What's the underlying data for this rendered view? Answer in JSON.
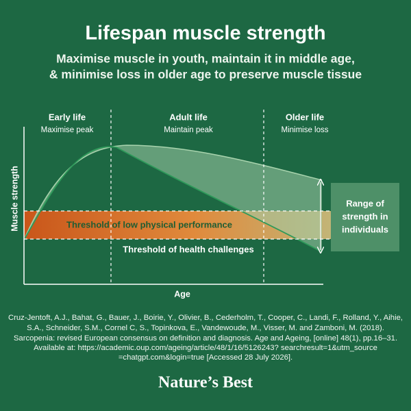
{
  "header": {
    "title": "Lifespan muscle strength",
    "subtitle_lines": [
      "Maximise muscle in youth, maintain it in middle age,",
      "& minimise loss in older age to preserve muscle tissue"
    ]
  },
  "diagram": {
    "phases": [
      {
        "label": "Early life",
        "note": "Maximise peak"
      },
      {
        "label": "Adult life",
        "note": "Maintain peak"
      },
      {
        "label": "Older life",
        "note": "Minimise loss"
      }
    ],
    "y_axis_label": "Muscle strength",
    "x_axis_label": "Age",
    "low_performance_threshold": "Threshold of low physical  performance",
    "health_threshold": "Threshold of health challenges",
    "range_box_lines": [
      "Range of",
      "strength in",
      "individuals"
    ]
  },
  "reference_lines": [
    "Cruz-Jentoft, A.J., Bahat, G., Bauer, J., Boirie, Y., Olivier, B., Cederholm, T., Cooper, C., Landi, F., Rolland, Y., Aihie,",
    "S.A., Schneider, S.M., Cornel C, S., Topinkova, E., Vandewoude, M., Visser, M. and Zamboni, M. (2018).",
    "Sarcopenia: revised European consensus on definition and diagnosis. Age and Ageing, [online] 48(1), pp.16–31.",
    "Available at: https://academic.oup.com/ageing/article/48/1/16/5126243? searchresult=1&utm_source",
    "=chatgpt.com&login=true [Accessed 28 July 2026]."
  ],
  "brand": "Nature’s Best"
}
